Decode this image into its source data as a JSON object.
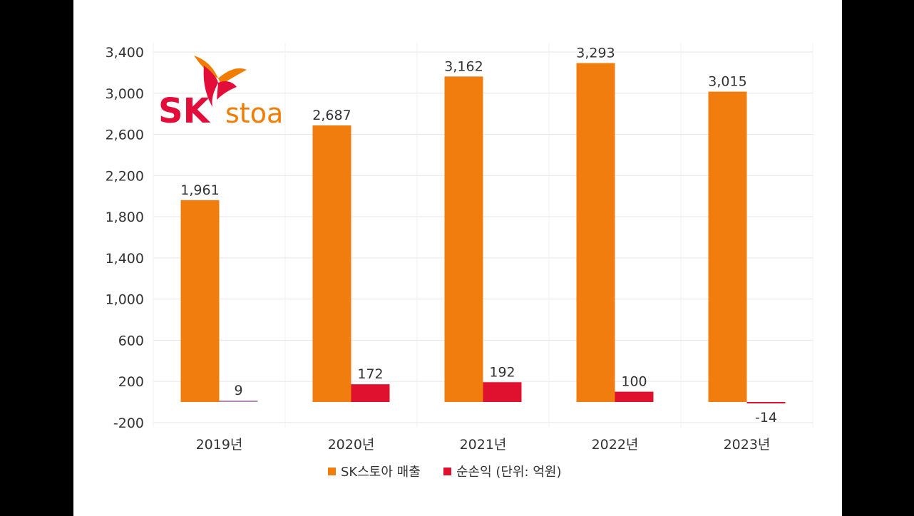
{
  "logo": {
    "brand": "SK",
    "product": "stoa"
  },
  "colors": {
    "revenue": "#f07d0e",
    "net_income": "#e0112e",
    "grid": "#e6e6e6"
  },
  "legend": {
    "items": [
      {
        "label": "SK스토아 매출",
        "color": "#f07d0e"
      },
      {
        "label": "순손익 (단위: 억원)",
        "color": "#e0112e"
      }
    ]
  },
  "chart_data": {
    "type": "bar",
    "categories": [
      "2019년",
      "2020년",
      "2021년",
      "2022년",
      "2023년"
    ],
    "series": [
      {
        "name": "SK스토아 매출",
        "values": [
          1961,
          2687,
          3162,
          3293,
          3015
        ]
      },
      {
        "name": "순손익 (단위: 억원)",
        "values": [
          9,
          172,
          192,
          100,
          -14
        ]
      }
    ],
    "value_labels": [
      [
        "1,961",
        "2,687",
        "3,162",
        "3,293",
        "3,015"
      ],
      [
        "9",
        "172",
        "192",
        "100",
        "-14"
      ]
    ],
    "y_ticks": [
      "3,400",
      "3,000",
      "2,600",
      "2,200",
      "1,800",
      "1,400",
      "1,000",
      "600",
      "200",
      "-200"
    ],
    "y_tick_values": [
      3400,
      3000,
      2600,
      2200,
      1800,
      1400,
      1000,
      600,
      200,
      -200
    ],
    "ylim": [
      -200,
      3400
    ],
    "title": "",
    "xlabel": "",
    "ylabel": "",
    "grid": true,
    "legend_position": "bottom"
  }
}
